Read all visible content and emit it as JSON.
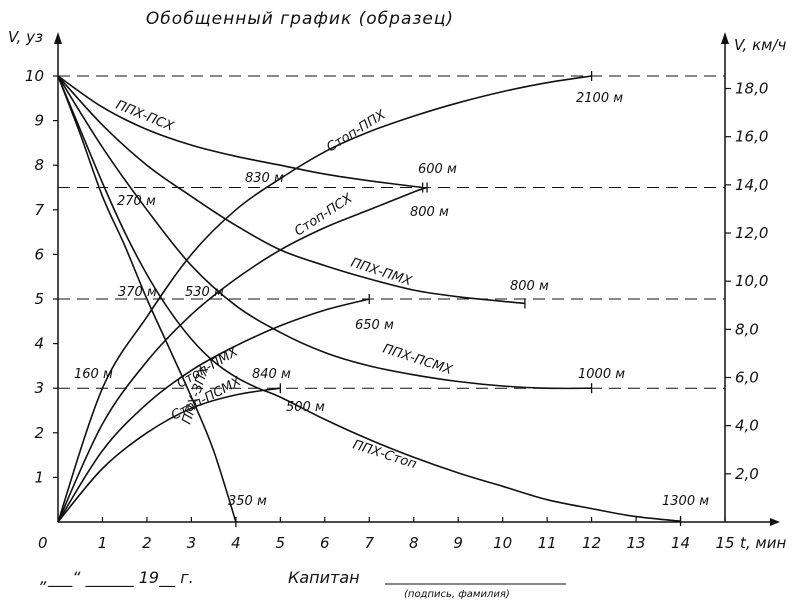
{
  "chart_data": {
    "type": "line",
    "title": "Обобщенный график (образец)",
    "ylabel_left": "V, уз",
    "ylabel_right": "V, км/ч",
    "xlabel": "t, мин",
    "xlim": [
      0,
      15
    ],
    "ylim": [
      0,
      10
    ],
    "x_ticks": [
      "0",
      "1",
      "2",
      "3",
      "4",
      "5",
      "6",
      "7",
      "8",
      "9",
      "10",
      "11",
      "12",
      "13",
      "14",
      "15"
    ],
    "y_ticks_left": [
      "1",
      "2",
      "3",
      "4",
      "5",
      "6",
      "7",
      "8",
      "9",
      "10"
    ],
    "y_ticks_right": [
      "2,0",
      "4,0",
      "6,0",
      "8,0",
      "10,0",
      "12,0",
      "14,0",
      "16,0",
      "18,0"
    ],
    "reference_speeds": [
      10,
      7.5,
      5,
      3
    ],
    "series": [
      {
        "name": "ППХ-ПСХ",
        "points": [
          [
            0,
            10
          ],
          [
            1,
            9.3
          ],
          [
            2,
            8.8
          ],
          [
            3,
            8.45
          ],
          [
            4,
            8.2
          ],
          [
            5,
            8.0
          ],
          [
            6,
            7.8
          ],
          [
            7,
            7.65
          ],
          [
            8.2,
            7.5
          ]
        ],
        "end_label": "600 м"
      },
      {
        "name": "ППХ-ПМХ",
        "points": [
          [
            0,
            10
          ],
          [
            1,
            8.9
          ],
          [
            2,
            8.0
          ],
          [
            3,
            7.3
          ],
          [
            4,
            6.65
          ],
          [
            5,
            6.1
          ],
          [
            6,
            5.75
          ],
          [
            7,
            5.45
          ],
          [
            8,
            5.2
          ],
          [
            9,
            5.05
          ],
          [
            10.5,
            4.9
          ]
        ],
        "end_label": "800 м"
      },
      {
        "name": "ППХ-ПСМХ",
        "points": [
          [
            0,
            10
          ],
          [
            1,
            8.4
          ],
          [
            2,
            7.0
          ],
          [
            3,
            5.75
          ],
          [
            4,
            4.85
          ],
          [
            5,
            4.25
          ],
          [
            6,
            3.8
          ],
          [
            7,
            3.5
          ],
          [
            8,
            3.3
          ],
          [
            9,
            3.15
          ],
          [
            10,
            3.05
          ],
          [
            11,
            3.0
          ],
          [
            12,
            3.0
          ]
        ],
        "end_label": "1000 м"
      },
      {
        "name": "ППХ-Стоп",
        "points": [
          [
            0,
            10
          ],
          [
            0.5,
            8.8
          ],
          [
            1,
            7.6
          ],
          [
            1.5,
            6.5
          ],
          [
            2,
            5.55
          ],
          [
            2.5,
            4.75
          ],
          [
            3,
            4.1
          ],
          [
            3.5,
            3.6
          ],
          [
            4,
            3.25
          ],
          [
            4.5,
            3.0
          ],
          [
            5,
            2.8
          ],
          [
            6,
            2.3
          ],
          [
            7,
            1.85
          ],
          [
            8,
            1.45
          ],
          [
            9,
            1.1
          ],
          [
            10,
            0.8
          ],
          [
            11,
            0.5
          ],
          [
            12,
            0.3
          ],
          [
            13,
            0.12
          ],
          [
            14,
            0.02
          ]
        ],
        "end_label": "1300 м"
      },
      {
        "name": "ППХ-ЗПХ",
        "points": [
          [
            0,
            10
          ],
          [
            0.5,
            8.7
          ],
          [
            1,
            7.3
          ],
          [
            1.5,
            6.2
          ],
          [
            2,
            5.0
          ],
          [
            2.5,
            3.9
          ],
          [
            3,
            2.8
          ],
          [
            3.5,
            1.6
          ],
          [
            4,
            0
          ]
        ],
        "end_label": "350 м"
      },
      {
        "name": "Стоп-ППХ",
        "points": [
          [
            0,
            0
          ],
          [
            1,
            3.0
          ],
          [
            2,
            4.6
          ],
          [
            3,
            6.0
          ],
          [
            4,
            7.0
          ],
          [
            5,
            7.7
          ],
          [
            6,
            8.3
          ],
          [
            7,
            8.75
          ],
          [
            8,
            9.1
          ],
          [
            9,
            9.4
          ],
          [
            10,
            9.65
          ],
          [
            11,
            9.85
          ],
          [
            12,
            10.0
          ]
        ],
        "end_label": "2100 м"
      },
      {
        "name": "Стоп-ПСХ",
        "points": [
          [
            0,
            0
          ],
          [
            1,
            2.2
          ],
          [
            2,
            3.6
          ],
          [
            3,
            4.65
          ],
          [
            4,
            5.45
          ],
          [
            5,
            6.1
          ],
          [
            6,
            6.6
          ],
          [
            7,
            7.0
          ],
          [
            8,
            7.4
          ],
          [
            8.3,
            7.5
          ]
        ],
        "end_label": "800 м"
      },
      {
        "name": "Стоп-ПМХ",
        "points": [
          [
            0,
            0
          ],
          [
            1,
            1.6
          ],
          [
            2,
            2.65
          ],
          [
            3,
            3.4
          ],
          [
            4,
            3.95
          ],
          [
            5,
            4.4
          ],
          [
            6,
            4.75
          ],
          [
            7,
            5.0
          ]
        ],
        "end_label": "650 м"
      },
      {
        "name": "Стоп-ПСМХ",
        "points": [
          [
            0,
            0
          ],
          [
            1,
            1.2
          ],
          [
            2,
            2.0
          ],
          [
            3,
            2.55
          ],
          [
            4,
            2.85
          ],
          [
            5,
            3.0
          ]
        ],
        "end_label": "500 м"
      }
    ],
    "annotations": [
      "830 м",
      "270 м",
      "370 м",
      "530 м",
      "160 м",
      "840 м"
    ]
  },
  "footer": {
    "date": "„___“ ______ 19__ г.",
    "captain": "Капитан",
    "signature_caption": "(подпись, фамилия)"
  }
}
